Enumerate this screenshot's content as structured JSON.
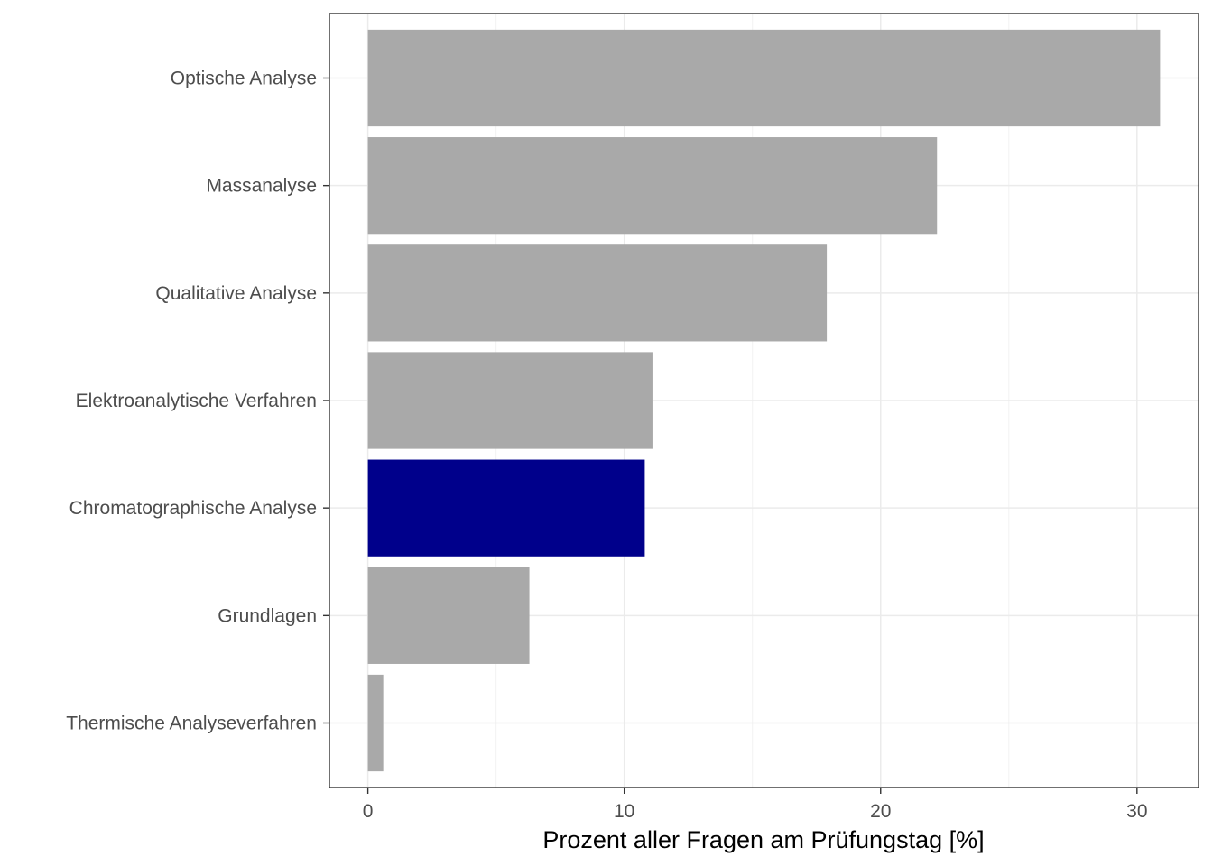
{
  "chart_data": {
    "type": "bar",
    "orientation": "horizontal",
    "title": "",
    "xlabel": "Prozent aller Fragen am Prüfungstag [%]",
    "ylabel": "",
    "categories": [
      "Optische Analyse",
      "Massanalyse",
      "Qualitative Analyse",
      "Elektroanalytische Verfahren",
      "Chromatographische Analyse",
      "Grundlagen",
      "Thermische Analyseverfahren"
    ],
    "values": [
      30.9,
      22.2,
      17.9,
      11.1,
      10.8,
      6.3,
      0.6
    ],
    "highlight_index": 4,
    "colors": {
      "default": "#a9a9a9",
      "highlight": "#00008b"
    },
    "xlim": [
      -1.5,
      32.4
    ],
    "xticks": [
      0,
      10,
      20,
      30
    ],
    "xtick_labels": [
      "0",
      "10",
      "20",
      "30"
    ],
    "grid": true,
    "legend": "none"
  }
}
